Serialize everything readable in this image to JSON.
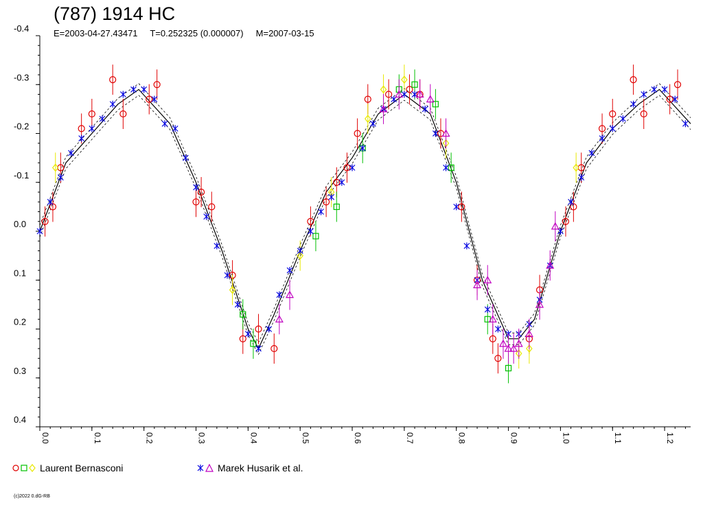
{
  "chart_data": {
    "type": "scatter",
    "title": "(787) 1914 HC",
    "subtitle": "E=2003-04-27.43471     T=0.252325 (0.000007)     M=2007-03-15",
    "xlim": [
      0.0,
      1.25
    ],
    "ylim": [
      -0.4,
      0.4
    ],
    "y_inverted": true,
    "x_ticks": [
      "0.0",
      "0.1",
      "0.2",
      "0.3",
      "0.4",
      "0.5",
      "0.6",
      "0.7",
      "0.8",
      "0.9",
      "1.0",
      "1.1",
      "1.2"
    ],
    "y_ticks": [
      "-0.4",
      "-0.3",
      "-0.2",
      "-0.1",
      "0.0",
      "0.1",
      "0.2",
      "0.3",
      "0.4"
    ],
    "grid": false,
    "fit_curve": {
      "x": [
        0.0,
        0.05,
        0.1,
        0.15,
        0.19,
        0.25,
        0.3,
        0.35,
        0.4,
        0.42,
        0.45,
        0.5,
        0.55,
        0.6,
        0.65,
        0.7,
        0.75,
        0.8,
        0.85,
        0.9,
        0.92,
        0.95,
        1.0,
        1.05,
        1.1,
        1.15,
        1.19,
        1.25
      ],
      "y": [
        0.0,
        -0.14,
        -0.2,
        -0.26,
        -0.29,
        -0.22,
        -0.1,
        0.04,
        0.2,
        0.24,
        0.17,
        0.04,
        -0.08,
        -0.15,
        -0.24,
        -0.28,
        -0.24,
        -0.1,
        0.1,
        0.22,
        0.22,
        0.18,
        0.0,
        -0.14,
        -0.21,
        -0.26,
        -0.29,
        -0.22
      ]
    },
    "series": [
      {
        "name": "Laurent Bernasconi",
        "marker": "circle",
        "color": "#e00000",
        "x": [
          0.01,
          0.025,
          0.04,
          0.08,
          0.1,
          0.14,
          0.16,
          0.21,
          0.225,
          0.3,
          0.31,
          0.33,
          0.37,
          0.39,
          0.42,
          0.45,
          0.52,
          0.55,
          0.57,
          0.59,
          0.61,
          0.63,
          0.67,
          0.71,
          0.73,
          0.77,
          0.81,
          0.84,
          0.87,
          0.88,
          0.94,
          0.96,
          1.01,
          1.025,
          1.04,
          1.08,
          1.1,
          1.14,
          1.16,
          1.21,
          1.225
        ],
        "y": [
          -0.02,
          -0.05,
          -0.13,
          -0.21,
          -0.24,
          -0.31,
          -0.24,
          -0.27,
          -0.3,
          -0.06,
          -0.08,
          -0.05,
          0.09,
          0.22,
          0.2,
          0.24,
          -0.02,
          -0.06,
          -0.1,
          -0.13,
          -0.2,
          -0.27,
          -0.28,
          -0.29,
          -0.28,
          -0.2,
          -0.05,
          0.1,
          0.22,
          0.26,
          0.22,
          0.12,
          -0.02,
          -0.05,
          -0.13,
          -0.21,
          -0.24,
          -0.31,
          -0.24,
          -0.27,
          -0.3
        ]
      },
      {
        "name": "Laurent Bernasconi",
        "marker": "square",
        "color": "#00c000",
        "x": [
          0.39,
          0.41,
          0.53,
          0.57,
          0.62,
          0.69,
          0.72,
          0.76,
          0.79,
          0.86,
          0.9
        ],
        "y": [
          0.17,
          0.23,
          0.01,
          -0.05,
          -0.17,
          -0.29,
          -0.3,
          -0.26,
          -0.13,
          0.18,
          0.28
        ]
      },
      {
        "name": "Laurent Bernasconi",
        "marker": "diamond",
        "color": "#e8e800",
        "x": [
          0.03,
          0.37,
          0.5,
          0.56,
          0.63,
          0.66,
          0.7,
          0.78,
          0.92,
          0.94,
          1.03
        ],
        "y": [
          -0.13,
          0.12,
          0.05,
          -0.08,
          -0.23,
          -0.29,
          -0.31,
          -0.18,
          0.25,
          0.24,
          -0.13
        ]
      },
      {
        "name": "Marek Husarik et al.",
        "marker": "star",
        "color": "#0000e0",
        "x": [
          0.0,
          0.02,
          0.04,
          0.06,
          0.08,
          0.1,
          0.12,
          0.14,
          0.16,
          0.18,
          0.2,
          0.22,
          0.24,
          0.26,
          0.28,
          0.3,
          0.32,
          0.34,
          0.36,
          0.38,
          0.4,
          0.42,
          0.44,
          0.46,
          0.48,
          0.5,
          0.52,
          0.54,
          0.56,
          0.58,
          0.6,
          0.62,
          0.64,
          0.66,
          0.68,
          0.7,
          0.72,
          0.74,
          0.76,
          0.78,
          0.8,
          0.82,
          0.84,
          0.86,
          0.88,
          0.9,
          0.92,
          0.94,
          0.96,
          0.98,
          1.0,
          1.02,
          1.04,
          1.06,
          1.08,
          1.1,
          1.12,
          1.14,
          1.16,
          1.18,
          1.2,
          1.22,
          1.24
        ],
        "y": [
          0.0,
          -0.06,
          -0.11,
          -0.16,
          -0.19,
          -0.21,
          -0.23,
          -0.26,
          -0.28,
          -0.29,
          -0.29,
          -0.27,
          -0.22,
          -0.21,
          -0.15,
          -0.09,
          -0.03,
          0.03,
          0.09,
          0.15,
          0.21,
          0.24,
          0.2,
          0.13,
          0.08,
          0.04,
          -0.0,
          -0.04,
          -0.07,
          -0.1,
          -0.13,
          -0.17,
          -0.22,
          -0.25,
          -0.27,
          -0.28,
          -0.28,
          -0.25,
          -0.2,
          -0.13,
          -0.05,
          0.03,
          0.1,
          0.16,
          0.2,
          0.21,
          0.21,
          0.19,
          0.14,
          0.07,
          -0.0,
          -0.06,
          -0.11,
          -0.16,
          -0.19,
          -0.21,
          -0.23,
          -0.26,
          -0.28,
          -0.29,
          -0.29,
          -0.27,
          -0.22
        ]
      },
      {
        "name": "Marek Husarik et al.",
        "marker": "triangle",
        "color": "#c000c0",
        "x": [
          0.46,
          0.48,
          0.66,
          0.69,
          0.73,
          0.75,
          0.78,
          0.84,
          0.86,
          0.87,
          0.89,
          0.9,
          0.91,
          0.92,
          0.94,
          0.96,
          0.98,
          0.99
        ],
        "y": [
          0.18,
          0.13,
          -0.25,
          -0.28,
          -0.28,
          -0.27,
          -0.2,
          0.11,
          0.1,
          0.18,
          0.23,
          0.24,
          0.24,
          0.23,
          0.21,
          0.15,
          0.07,
          -0.01
        ]
      }
    ]
  },
  "legend": {
    "left_label": "Laurent Bernasconi",
    "right_label": "Marek Husarik et al."
  },
  "copyright": "(c)2022 0.dG-RB"
}
